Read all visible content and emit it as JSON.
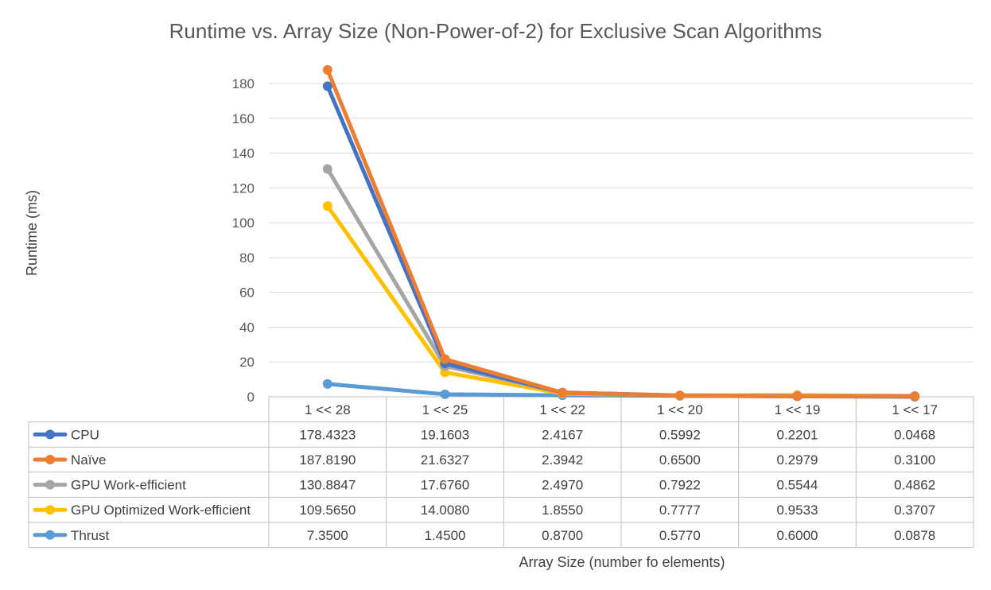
{
  "chart_data": {
    "type": "line",
    "title": "Runtime vs. Array Size (Non-Power-of-2) for Exclusive Scan Algorithms",
    "xlabel": "Array Size (number fo elements)",
    "ylabel": "Runtime (ms)",
    "ylim": [
      0,
      180
    ],
    "yticks": [
      0,
      20,
      40,
      60,
      80,
      100,
      120,
      140,
      160,
      180
    ],
    "grid": true,
    "legend": "data table below chart",
    "categories": [
      "1 << 28",
      "1 << 25",
      "1 << 22",
      "1 << 20",
      "1 << 19",
      "1 << 17"
    ],
    "series": [
      {
        "name": "CPU",
        "color": "#4472c4",
        "values": [
          178.4323,
          19.1603,
          2.4167,
          0.5992,
          0.2201,
          0.0468
        ],
        "labels": [
          "178.4323",
          "19.1603",
          "2.4167",
          "0.5992",
          "0.2201",
          "0.0468"
        ]
      },
      {
        "name": "Naïve",
        "color": "#ed7d31",
        "values": [
          187.819,
          21.6327,
          2.3942,
          0.65,
          0.2979,
          0.31
        ],
        "labels": [
          "187.8190",
          "21.6327",
          "2.3942",
          "0.6500",
          "0.2979",
          "0.3100"
        ]
      },
      {
        "name": "GPU Work-efficient",
        "color": "#a5a5a5",
        "values": [
          130.8847,
          17.676,
          2.497,
          0.7922,
          0.5544,
          0.4862
        ],
        "labels": [
          "130.8847",
          "17.6760",
          "2.4970",
          "0.7922",
          "0.5544",
          "0.4862"
        ]
      },
      {
        "name": "GPU Optimized Work-efficient",
        "color": "#ffc000",
        "values": [
          109.565,
          14.008,
          1.855,
          0.7777,
          0.9533,
          0.3707
        ],
        "labels": [
          "109.5650",
          "14.0080",
          "1.8550",
          "0.7777",
          "0.9533",
          "0.3707"
        ]
      },
      {
        "name": "Thrust",
        "color": "#5b9bd5",
        "values": [
          7.35,
          1.45,
          0.87,
          0.577,
          0.6,
          0.0878
        ],
        "labels": [
          "7.3500",
          "1.4500",
          "0.8700",
          "0.5770",
          "0.6000",
          "0.0878"
        ]
      }
    ]
  }
}
